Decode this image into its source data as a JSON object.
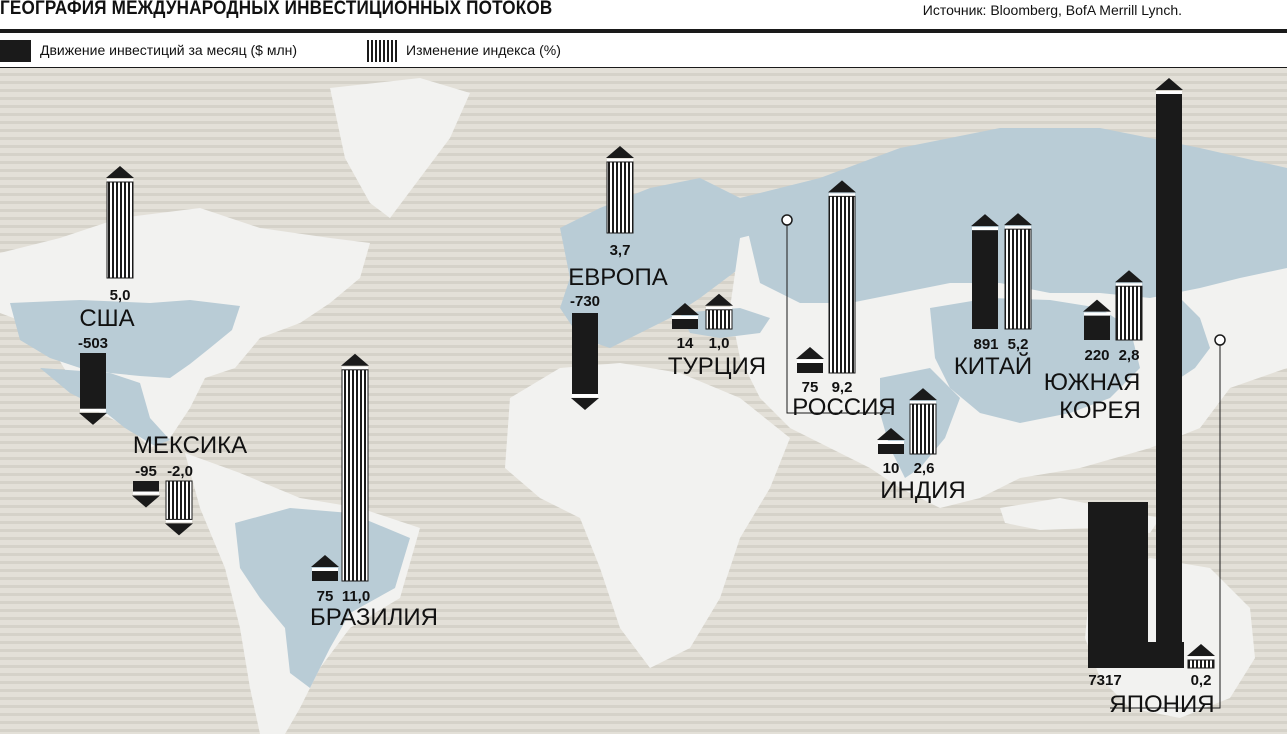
{
  "header": {
    "title": "ГЕОГРАФИЯ МЕЖДУНАРОДНЫХ ИНВЕСТИЦИОННЫХ ПОТОКОВ",
    "source": "Источник: Bloomberg, BofA Merrill Lynch."
  },
  "legend": {
    "flow_label": "Движение инвестиций за месяц ($ млн)",
    "index_label": "Изменение индекса (%)"
  },
  "colors": {
    "ink": "#1a1a1a",
    "land": "#f2f2f0",
    "highlighted_land": "#b9ccd6",
    "background_waves": "#dcd9d1"
  },
  "chart_data": {
    "type": "bar",
    "title": "ГЕОГРАФИЯ МЕЖДУНАРОДНЫХ ИНВЕСТИЦИОННЫХ ПОТОКОВ",
    "categories": [
      "США",
      "МЕКСИКА",
      "БРАЗИЛИЯ",
      "ЕВРОПА",
      "ТУРЦИЯ",
      "РОССИЯ",
      "ИНДИЯ",
      "КИТАЙ",
      "ЮЖНАЯ КОРЕЯ",
      "ЯПОНИЯ"
    ],
    "series": [
      {
        "name": "Движение инвестиций за месяц ($ млн)",
        "values": [
          -503,
          -95,
          75,
          -730,
          14,
          75,
          10,
          891,
          220,
          7317
        ],
        "labels": [
          "-503",
          "-95",
          "75",
          "-730",
          "14",
          "75",
          "10",
          "891",
          "220",
          "7317"
        ]
      },
      {
        "name": "Изменение индекса (%)",
        "values": [
          5.0,
          -2.0,
          11.0,
          3.7,
          1.0,
          9.2,
          2.6,
          5.2,
          2.8,
          0.2
        ],
        "labels": [
          "5,0",
          "-2,0",
          "11,0",
          "3,7",
          "1,0",
          "9,2",
          "2,6",
          "5,2",
          "2,8",
          "0,2"
        ]
      }
    ]
  }
}
